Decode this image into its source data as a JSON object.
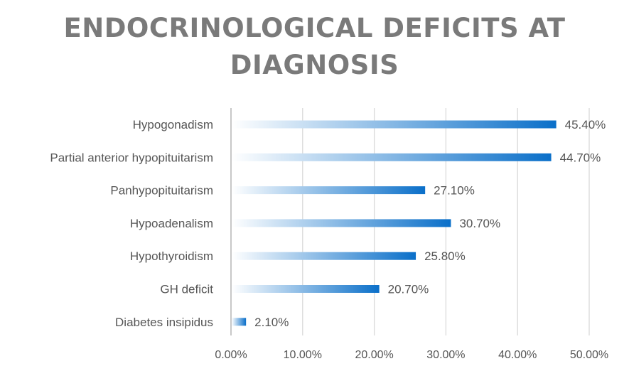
{
  "chart_data": {
    "type": "bar",
    "orientation": "horizontal",
    "title_lines": [
      "ENDOCRINOLOGICAL DEFICITS AT",
      "DIAGNOSIS"
    ],
    "categories": [
      "Hypogonadism",
      "Partial anterior hypopituitarism",
      "Panhypopituitarism",
      "Hypoadenalism",
      "Hypothyroidism",
      "GH deficit",
      "Diabetes insipidus"
    ],
    "values": [
      45.4,
      44.7,
      27.1,
      30.7,
      25.8,
      20.7,
      2.1
    ],
    "value_labels": [
      "45.40%",
      "44.70%",
      "27.10%",
      "30.70%",
      "25.80%",
      "20.70%",
      "2.10%"
    ],
    "xlim": [
      0,
      50
    ],
    "x_ticks": [
      0,
      10,
      20,
      30,
      40,
      50
    ],
    "x_tick_labels": [
      "0.00%",
      "10.00%",
      "20.00%",
      "30.00%",
      "40.00%",
      "50.00%"
    ],
    "grid": true,
    "legend": "none",
    "bar_color": "#0a6fc9",
    "bar_fade_color": "#ffffff"
  }
}
